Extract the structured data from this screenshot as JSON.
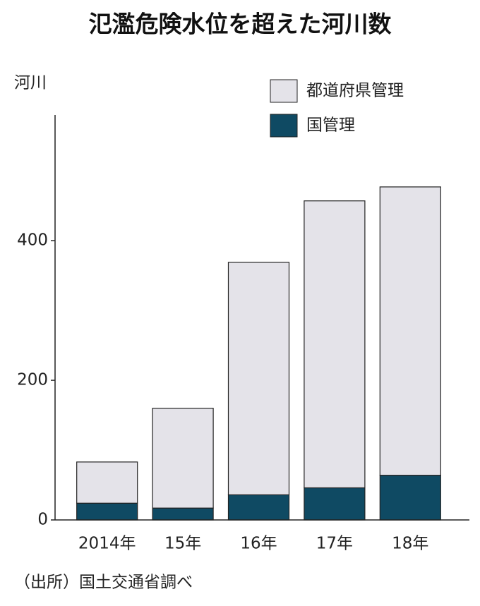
{
  "chart_data": {
    "type": "stacked_bar",
    "title": "氾濫危険水位を超えた河川数",
    "y_label": "河川",
    "source": "（出所）国土交通省調べ",
    "categories": [
      "2014年",
      "15年",
      "16年",
      "17年",
      "18年"
    ],
    "series": [
      {
        "name": "都道府県管理",
        "color": "#e4e3e9",
        "values": [
          59,
          143,
          333,
          411,
          413
        ]
      },
      {
        "name": "国管理",
        "color": "#0f4a63",
        "values": [
          24,
          17,
          36,
          46,
          64
        ]
      }
    ],
    "ylim": [
      0,
      580
    ],
    "yticks": [
      0,
      200,
      400
    ]
  }
}
